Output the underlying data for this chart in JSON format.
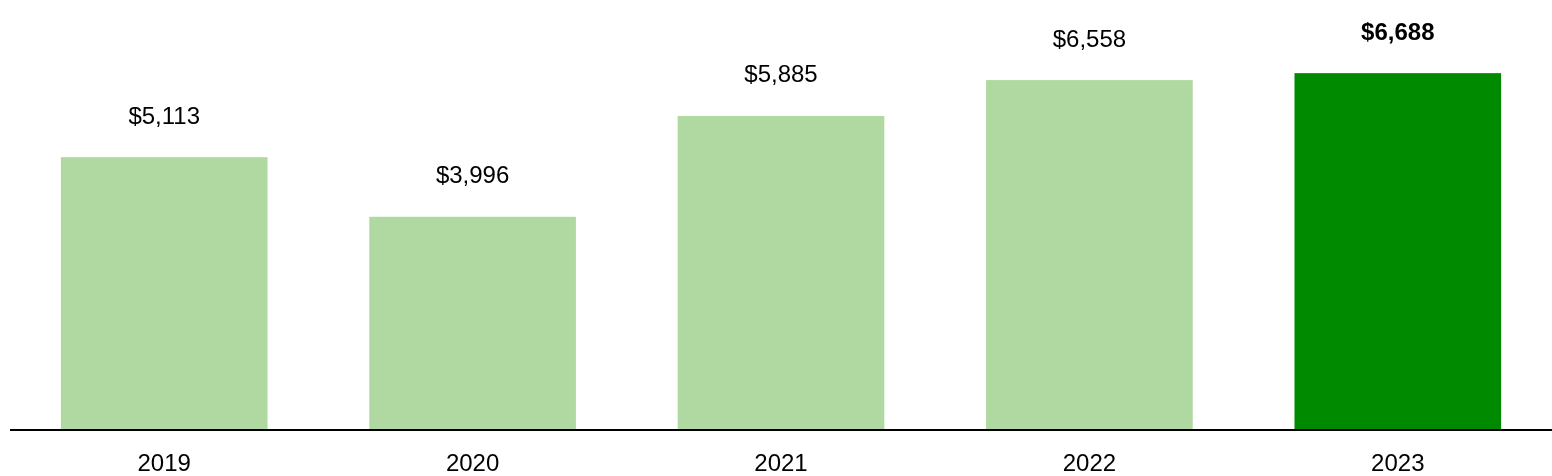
{
  "chart_data": {
    "type": "bar",
    "categories": [
      "2019",
      "2020",
      "2021",
      "2022",
      "2023"
    ],
    "values": [
      5113,
      3996,
      5885,
      6558,
      6688
    ],
    "colors": [
      "#afd9a0",
      "#afd9a0",
      "#afd9a0",
      "#afd9a0",
      "#008a00"
    ],
    "value_labels": [
      "$5,113",
      "$3,996",
      "$5,885",
      "$6,558",
      "$6,688"
    ]
  }
}
